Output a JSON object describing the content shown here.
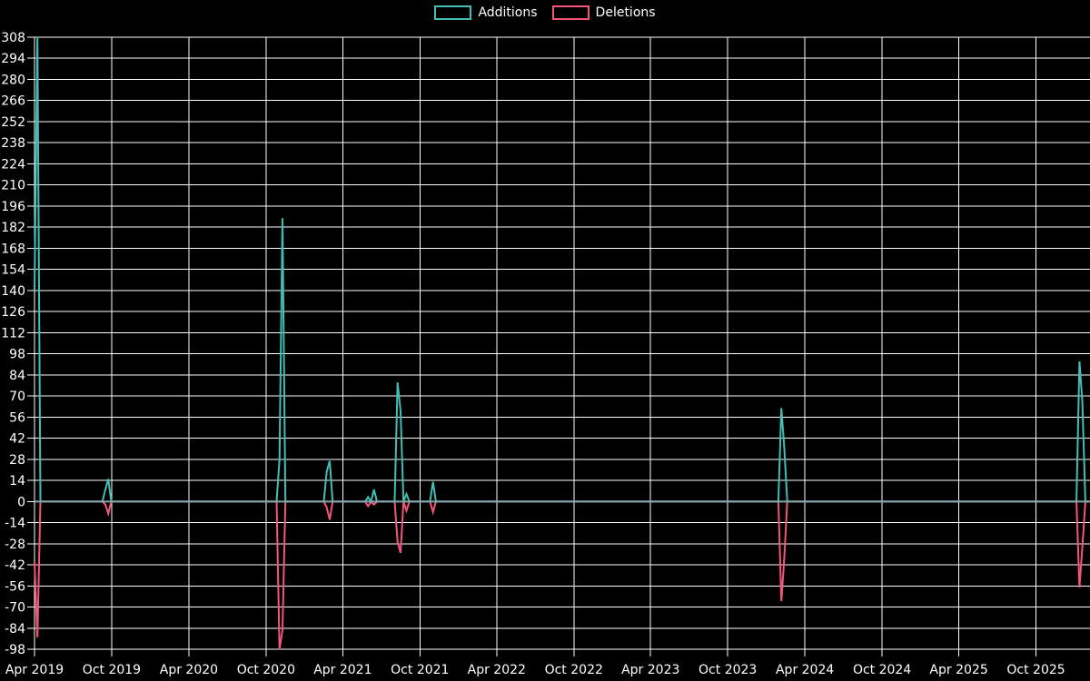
{
  "legend": {
    "position": "top-center",
    "items": [
      {
        "label": "Additions",
        "color": "#41bfb6"
      },
      {
        "label": "Deletions",
        "color": "#f4567b"
      }
    ]
  },
  "chart_data": {
    "type": "line",
    "title": "",
    "description": "Weekly code frequency chart (additions vs deletions) on black background with white grid",
    "colors": {
      "additions": "#41bfb6",
      "deletions": "#f4567b",
      "grid": "#ffffff",
      "zero_line": "#86a6aa",
      "text": "#ffffff",
      "background": "#000000"
    },
    "grid": true,
    "legend_position": "top-center",
    "y_axis": {
      "min": -98,
      "max": 308,
      "step": 14
    },
    "x_axis": {
      "start": "2019-04-01",
      "end": "2026-02-09",
      "ticks": [
        {
          "label": "Apr 2019",
          "date": "2019-04-01"
        },
        {
          "label": "Oct 2019",
          "date": "2019-10-01"
        },
        {
          "label": "Apr 2020",
          "date": "2020-04-01"
        },
        {
          "label": "Oct 2020",
          "date": "2020-10-01"
        },
        {
          "label": "Apr 2021",
          "date": "2021-04-01"
        },
        {
          "label": "Oct 2021",
          "date": "2021-10-01"
        },
        {
          "label": "Apr 2022",
          "date": "2022-04-01"
        },
        {
          "label": "Oct 2022",
          "date": "2022-10-01"
        },
        {
          "label": "Apr 2023",
          "date": "2023-04-01"
        },
        {
          "label": "Oct 2023",
          "date": "2023-10-01"
        },
        {
          "label": "Apr 2024",
          "date": "2024-04-01"
        },
        {
          "label": "Oct 2024",
          "date": "2024-10-01"
        },
        {
          "label": "Apr 2025",
          "date": "2025-04-01"
        },
        {
          "label": "Oct 2025",
          "date": "2025-10-01"
        }
      ]
    },
    "baseline": 0,
    "weekly_events": [
      {
        "date": "2019-04-01",
        "additions": 140,
        "deletions": -40
      },
      {
        "date": "2019-04-08",
        "additions": 308,
        "deletions": -90
      },
      {
        "date": "2019-09-16",
        "additions": 8,
        "deletions": -2
      },
      {
        "date": "2019-09-23",
        "additions": 15,
        "deletions": -8
      },
      {
        "date": "2020-11-02",
        "additions": 28,
        "deletions": -98
      },
      {
        "date": "2020-11-09",
        "additions": 188,
        "deletions": -85
      },
      {
        "date": "2021-02-22",
        "additions": 20,
        "deletions": -4
      },
      {
        "date": "2021-03-01",
        "additions": 27,
        "deletions": -12
      },
      {
        "date": "2021-05-31",
        "additions": 3,
        "deletions": -3
      },
      {
        "date": "2021-06-14",
        "additions": 8,
        "deletions": -2
      },
      {
        "date": "2021-08-09",
        "additions": 79,
        "deletions": -27
      },
      {
        "date": "2021-08-16",
        "additions": 60,
        "deletions": -34
      },
      {
        "date": "2021-08-30",
        "additions": 5,
        "deletions": -6
      },
      {
        "date": "2021-11-01",
        "additions": 13,
        "deletions": -7
      },
      {
        "date": "2024-02-05",
        "additions": 62,
        "deletions": -66
      },
      {
        "date": "2024-02-12",
        "additions": 36,
        "deletions": -38
      },
      {
        "date": "2026-01-12",
        "additions": 93,
        "deletions": -57
      },
      {
        "date": "2026-01-19",
        "additions": 66,
        "deletions": -30
      }
    ]
  }
}
